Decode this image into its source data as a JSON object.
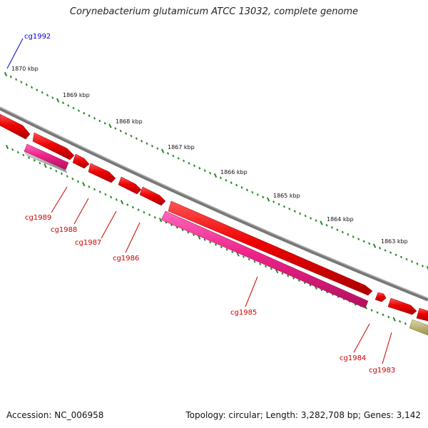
{
  "title": "Corynebacterium glutamicum ATCC 13032, complete genome",
  "footer": {
    "accession": "Accession: NC_006958",
    "summary": "Topology: circular; Length: 3,282,708 bp; Genes: 3,142"
  },
  "colors": {
    "backbone": "#7a7a7a",
    "gene_red": "#ee0000",
    "gene_pink": "#ee2288",
    "gene_gray": "#a8a8a8",
    "gene_olive": "#b8b070",
    "tick": "#228822",
    "label_red": "#cc0000",
    "label_blue": "#0000cc"
  },
  "ruler_labels": [
    "1870 kbp",
    "1869 kbp",
    "1868 kbp",
    "1867 kbp",
    "1866 kbp",
    "1865 kbp",
    "1864 kbp",
    "1863 kbp"
  ],
  "gene_labels": [
    {
      "name": "cg1992",
      "color": "blue"
    },
    {
      "name": "cg1989",
      "color": "red"
    },
    {
      "name": "cg1988",
      "color": "red"
    },
    {
      "name": "cg1987",
      "color": "red"
    },
    {
      "name": "cg1986",
      "color": "red"
    },
    {
      "name": "cg1985",
      "color": "red"
    },
    {
      "name": "cg1984",
      "color": "red"
    },
    {
      "name": "cg1983",
      "color": "red"
    }
  ]
}
